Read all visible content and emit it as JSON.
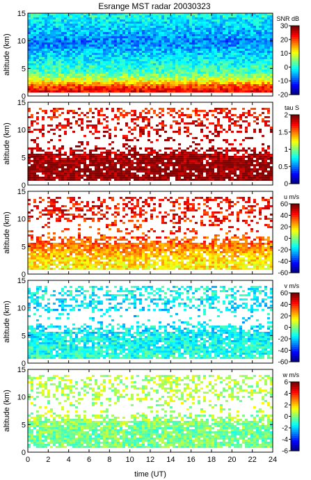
{
  "chart_data": {
    "type": "heatmap",
    "title": "Esrange MST radar 20030323",
    "xlabel": "time (UT)",
    "xlim": [
      0,
      24
    ],
    "xticks": [
      0,
      2,
      4,
      6,
      8,
      10,
      12,
      14,
      16,
      18,
      20,
      22,
      24
    ],
    "colormap": "jet",
    "panels": [
      {
        "ylabel": "altitude (km)",
        "ylim": [
          0,
          15
        ],
        "yticks": [
          0,
          5,
          10,
          15
        ],
        "colorbar": {
          "label": "SNR dB",
          "range": [
            -20,
            30
          ],
          "ticks": [
            -20,
            -10,
            0,
            10,
            20,
            30
          ]
        },
        "profile": [
          {
            "alt": 1.0,
            "value": 25
          },
          {
            "alt": 2.0,
            "value": 20
          },
          {
            "alt": 3.0,
            "value": 10
          },
          {
            "alt": 4.5,
            "value": 2
          },
          {
            "alt": 6.0,
            "value": 0
          },
          {
            "alt": 8.0,
            "value": -4
          },
          {
            "alt": 10.0,
            "value": -8
          },
          {
            "alt": 12.0,
            "value": -4
          },
          {
            "alt": 14.0,
            "value": -2
          },
          {
            "alt": 15.0,
            "value": 0
          }
        ],
        "coverage_top_km": 15
      },
      {
        "ylabel": "altitude (km)",
        "ylim": [
          0,
          15
        ],
        "yticks": [
          0,
          5,
          10,
          15
        ],
        "colorbar": {
          "label": "tau S",
          "range": [
            0,
            2
          ],
          "ticks": [
            0,
            0.5,
            1,
            1.5,
            2
          ]
        },
        "profile": [
          {
            "alt": 1.0,
            "value": 2.0
          },
          {
            "alt": 4.0,
            "value": 2.0
          },
          {
            "alt": 6.0,
            "value": 1.9
          },
          {
            "alt": 8.0,
            "value": 1.9
          },
          {
            "alt": 11.0,
            "value": 1.8
          },
          {
            "alt": 14.0,
            "value": 1.7
          }
        ],
        "coverage_top_km": 14
      },
      {
        "ylabel": "altitude (km)",
        "ylim": [
          0,
          15
        ],
        "yticks": [
          0,
          5,
          10,
          15
        ],
        "colorbar": {
          "label": "u m/s",
          "range": [
            -60,
            60
          ],
          "ticks": [
            -60,
            -40,
            -20,
            0,
            20,
            40,
            60
          ]
        },
        "profile": [
          {
            "alt": 1.0,
            "value": 15
          },
          {
            "alt": 3.0,
            "value": 20
          },
          {
            "alt": 5.0,
            "value": 30
          },
          {
            "alt": 7.0,
            "value": 38
          },
          {
            "alt": 9.0,
            "value": 42
          },
          {
            "alt": 11.0,
            "value": 45
          },
          {
            "alt": 13.0,
            "value": 45
          }
        ],
        "coverage_top_km": 14
      },
      {
        "ylabel": "altitude (km)",
        "ylim": [
          0,
          15
        ],
        "yticks": [
          0,
          5,
          10,
          15
        ],
        "colorbar": {
          "label": "v m/s",
          "range": [
            -60,
            60
          ],
          "ticks": [
            -60,
            -40,
            -20,
            0,
            20,
            40,
            60
          ]
        },
        "profile": [
          {
            "alt": 1.0,
            "value": -10
          },
          {
            "alt": 4.0,
            "value": -14
          },
          {
            "alt": 7.0,
            "value": -17
          },
          {
            "alt": 10.0,
            "value": -18
          },
          {
            "alt": 13.0,
            "value": -14
          }
        ],
        "coverage_top_km": 14
      },
      {
        "ylabel": "altitude (km)",
        "ylim": [
          0,
          15
        ],
        "yticks": [
          0,
          5,
          10,
          15
        ],
        "colorbar": {
          "label": "w m/s",
          "range": [
            -6,
            6
          ],
          "ticks": [
            -6,
            -4,
            -2,
            0,
            2,
            4,
            6
          ]
        },
        "profile": [
          {
            "alt": 1.0,
            "value": 0.0
          },
          {
            "alt": 4.0,
            "value": -0.2
          },
          {
            "alt": 7.0,
            "value": 0.5
          },
          {
            "alt": 10.0,
            "value": 0.6
          },
          {
            "alt": 13.0,
            "value": 0.6
          }
        ],
        "coverage_top_km": 14
      }
    ]
  }
}
